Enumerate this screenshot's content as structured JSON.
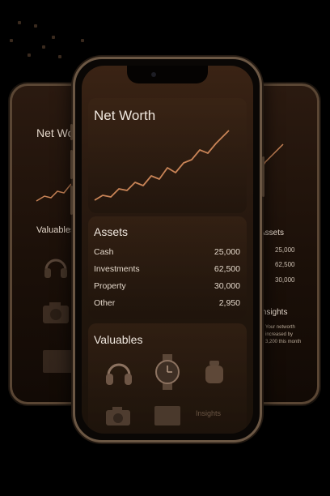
{
  "main_screen": {
    "net_worth": {
      "title": "Net Worth"
    },
    "assets": {
      "title": "Assets",
      "items": [
        {
          "label": "Cash",
          "value": "25,000"
        },
        {
          "label": "Investments",
          "value": "62,500"
        },
        {
          "label": "Property",
          "value": "30,000"
        },
        {
          "label": "Other",
          "value": "2,950"
        }
      ]
    },
    "valuables": {
      "title": "Valuables",
      "icons": [
        "headphones-icon",
        "watch-icon",
        "bag-icon",
        "camera-icon",
        "laptop-icon"
      ]
    },
    "insights_peek": "Insights"
  },
  "left_screen": {
    "title": "Net Worth",
    "valuables_title": "Valuables"
  },
  "right_screen": {
    "assets_title": "Assets",
    "asset_values": [
      "25,000",
      "62,500",
      "30,000"
    ],
    "insights_title": "Insights",
    "insights_note": "Your networth increased by 3,200 this month"
  },
  "colors": {
    "accent_line": "#c98457",
    "background": "#000000",
    "frame": "#6b5744"
  }
}
